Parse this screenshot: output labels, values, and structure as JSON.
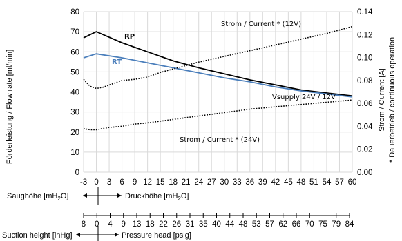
{
  "chart_data": {
    "type": "line",
    "x_axis": {
      "ticks": [
        "-3",
        "0",
        "3",
        "6",
        "9",
        "12",
        "15",
        "18",
        "21",
        "24",
        "27",
        "30",
        "33",
        "36",
        "39",
        "42",
        "45",
        "48",
        "51",
        "54",
        "57",
        "60"
      ],
      "range": [
        -3,
        60
      ]
    },
    "y_left": {
      "label": "Förderleistung / Flow rate [ml/min]",
      "range": [
        0,
        80
      ],
      "ticks": [
        "0",
        "10",
        "20",
        "30",
        "40",
        "50",
        "60",
        "70",
        "80"
      ]
    },
    "y_right": {
      "label": "Strom / Current [A]",
      "label2": "* Dauerbetrieb / continuous operation",
      "range": [
        0,
        0.14
      ],
      "ticks": [
        "0.00",
        "0.02",
        "0.04",
        "0.06",
        "0.08",
        "0.10",
        "0.12",
        "0.14"
      ]
    },
    "grid": true,
    "series": [
      {
        "name": "RP",
        "axis": "left",
        "color": "#000000",
        "style": "solid",
        "x": [
          -3,
          0,
          6,
          12,
          18,
          24,
          30,
          36,
          42,
          48,
          54,
          60
        ],
        "y": [
          67,
          70,
          64.5,
          60,
          55.5,
          52,
          49,
          46,
          43.5,
          41,
          39.5,
          38
        ]
      },
      {
        "name": "RT",
        "axis": "left",
        "color": "#4a7ebb",
        "style": "solid",
        "x": [
          -3,
          0,
          6,
          12,
          18,
          24,
          30,
          36,
          42,
          48,
          54,
          60
        ],
        "y": [
          57,
          59,
          57,
          54.5,
          52,
          49.5,
          47,
          45,
          42.5,
          40.5,
          39,
          37.5
        ]
      },
      {
        "name": "Strom / Current * (12V)",
        "axis": "right",
        "color": "#000000",
        "style": "dotted",
        "x": [
          -3,
          -1.5,
          0,
          1.5,
          3,
          6,
          9,
          12,
          15,
          18,
          21,
          24,
          30,
          36,
          42,
          48,
          54,
          60
        ],
        "y": [
          0.081,
          0.075,
          0.073,
          0.074,
          0.076,
          0.08,
          0.081,
          0.083,
          0.087,
          0.09,
          0.093,
          0.096,
          0.101,
          0.106,
          0.111,
          0.116,
          0.121,
          0.127
        ]
      },
      {
        "name": "Strom / Current * (24V)",
        "axis": "right",
        "color": "#000000",
        "style": "dotted",
        "x": [
          -3,
          -1.5,
          0,
          3,
          6,
          9,
          12,
          18,
          24,
          30,
          36,
          42,
          48,
          54,
          60
        ],
        "y": [
          0.038,
          0.037,
          0.037,
          0.039,
          0.04,
          0.042,
          0.043,
          0.046,
          0.049,
          0.052,
          0.055,
          0.057,
          0.059,
          0.061,
          0.063
        ]
      }
    ],
    "labels": {
      "rp": "RP",
      "rt": "RT",
      "strom12": "Strom / Current * (12V)",
      "strom24": "Strom / Current * (24V)",
      "vsupply": "Vsupply 24V / 12V"
    },
    "secondary_axes": {
      "mh2o": {
        "left_label": "Saughöhe [mH",
        "left_sub": "2",
        "left_tail": "O]",
        "right_label": "Druckhöhe [mH",
        "right_sub": "2",
        "right_tail": "O]"
      },
      "psig": {
        "ticks": [
          "8",
          "0",
          "4",
          "9",
          "13",
          "18",
          "22",
          "26",
          "31",
          "35",
          "40",
          "44",
          "48",
          "53",
          "57",
          "62",
          "66",
          "70",
          "75",
          "79",
          "84"
        ],
        "left_label": "Suction height [inHg]",
        "right_label": "Pressure head [psig]"
      }
    }
  }
}
